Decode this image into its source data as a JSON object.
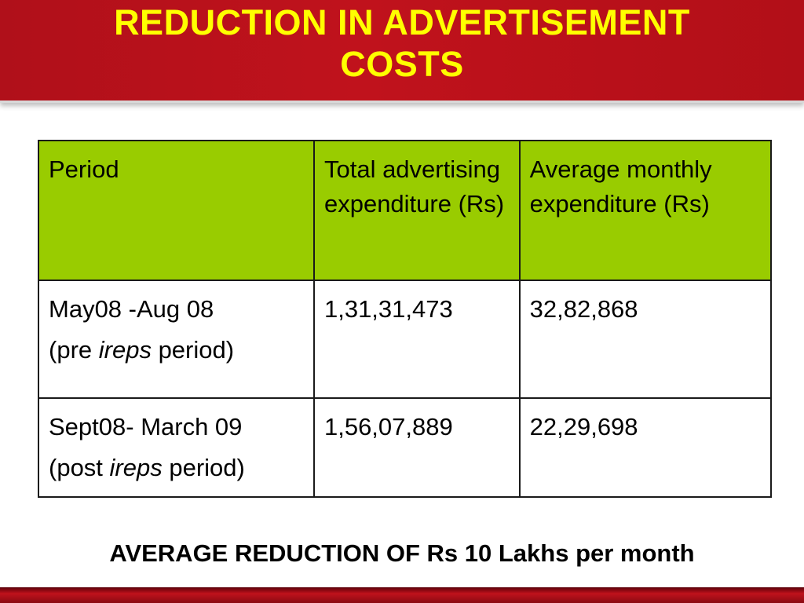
{
  "slide": {
    "title_line1": "REDUCTION IN ADVERTISEMENT",
    "title_line2": "COSTS",
    "table": {
      "headers": [
        "Period",
        "Total advertising expenditure (Rs)",
        "Average monthly expenditure (Rs)"
      ],
      "rows": [
        {
          "period_line1": "May08 -Aug 08",
          "period_pre": "(pre ",
          "period_em": "ireps",
          "period_post": " period)",
          "total": "1,31,31,473",
          "average": "32,82,868"
        },
        {
          "period_line1": "Sept08- March 09",
          "period_pre": "(post ",
          "period_em": "ireps",
          "period_post": " period)",
          "total": "1,56,07,889",
          "average": "22,29,698"
        }
      ]
    },
    "footer": "AVERAGE REDUCTION OF Rs 10 Lakhs per month",
    "colors": {
      "title_bar": "#c0121c",
      "title_text": "#ffff00",
      "header_fill": "#99cc00"
    }
  }
}
